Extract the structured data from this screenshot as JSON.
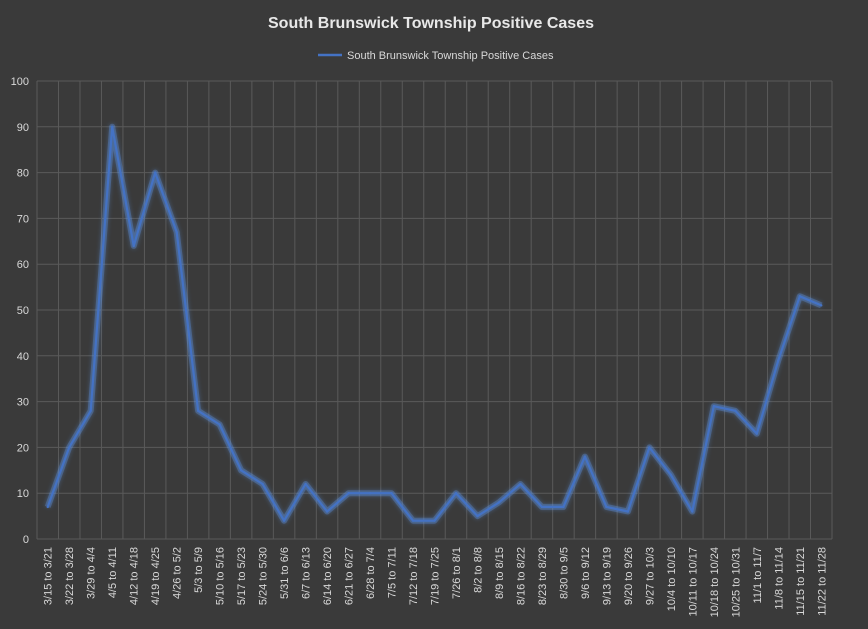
{
  "chart_data": {
    "type": "line",
    "title": "South Brunswick Township Positive Cases",
    "xlabel": "",
    "ylabel": "",
    "ylim": [
      0,
      100
    ],
    "yticks": [
      0,
      10,
      20,
      30,
      40,
      50,
      60,
      70,
      80,
      90,
      100
    ],
    "grid": true,
    "legend": "top-center",
    "line_color": "#4472c4",
    "glow_color": "#5b8fe0",
    "categories": [
      "3/15 to 3/21",
      "3/22 to 3/28",
      "3/29 to 4/4",
      "4/5 to 4/11",
      "4/12 to 4/18",
      "4/19 to 4/25",
      "4/26 to 5/2",
      "5/3 to 5/9",
      "5/10 to 5/16",
      "5/17 to 5/23",
      "5/24 to 5/30",
      "5/31 to 6/6",
      "6/7 to 6/13",
      "6/14 to 6/20",
      "6/21 to 6/27",
      "6/28 to 7/4",
      "7/5 to 7/11",
      "7/12 to 7/18",
      "7/19 to 7/25",
      "7/26 to 8/1",
      "8/2 to 8/8",
      "8/9 to 8/15",
      "8/16 to 8/22",
      "8/23 to 8/29",
      "8/30 to 9/5",
      "9/6 to 9/12",
      "9/13 to 9/19",
      "9/20 to 9/26",
      "9/27 to 10/3",
      "10/4 to 10/10",
      "10/11 to 10/17",
      "10/18 to 10/24",
      "10/25 to 10/31",
      "11/1 to 11/7",
      "11/8 to 11/14",
      "11/15 to 11/21",
      "11/22 to 11/28"
    ],
    "series": [
      {
        "name": "South Brunswick Township Positive Cases",
        "values": [
          7,
          20,
          28,
          90,
          64,
          80,
          67,
          28,
          25,
          15,
          12,
          4,
          12,
          6,
          10,
          10,
          10,
          4,
          4,
          10,
          5,
          8,
          12,
          7,
          7,
          18,
          7,
          6,
          20,
          14,
          6,
          29,
          28,
          23,
          39,
          53,
          51
        ]
      }
    ]
  }
}
